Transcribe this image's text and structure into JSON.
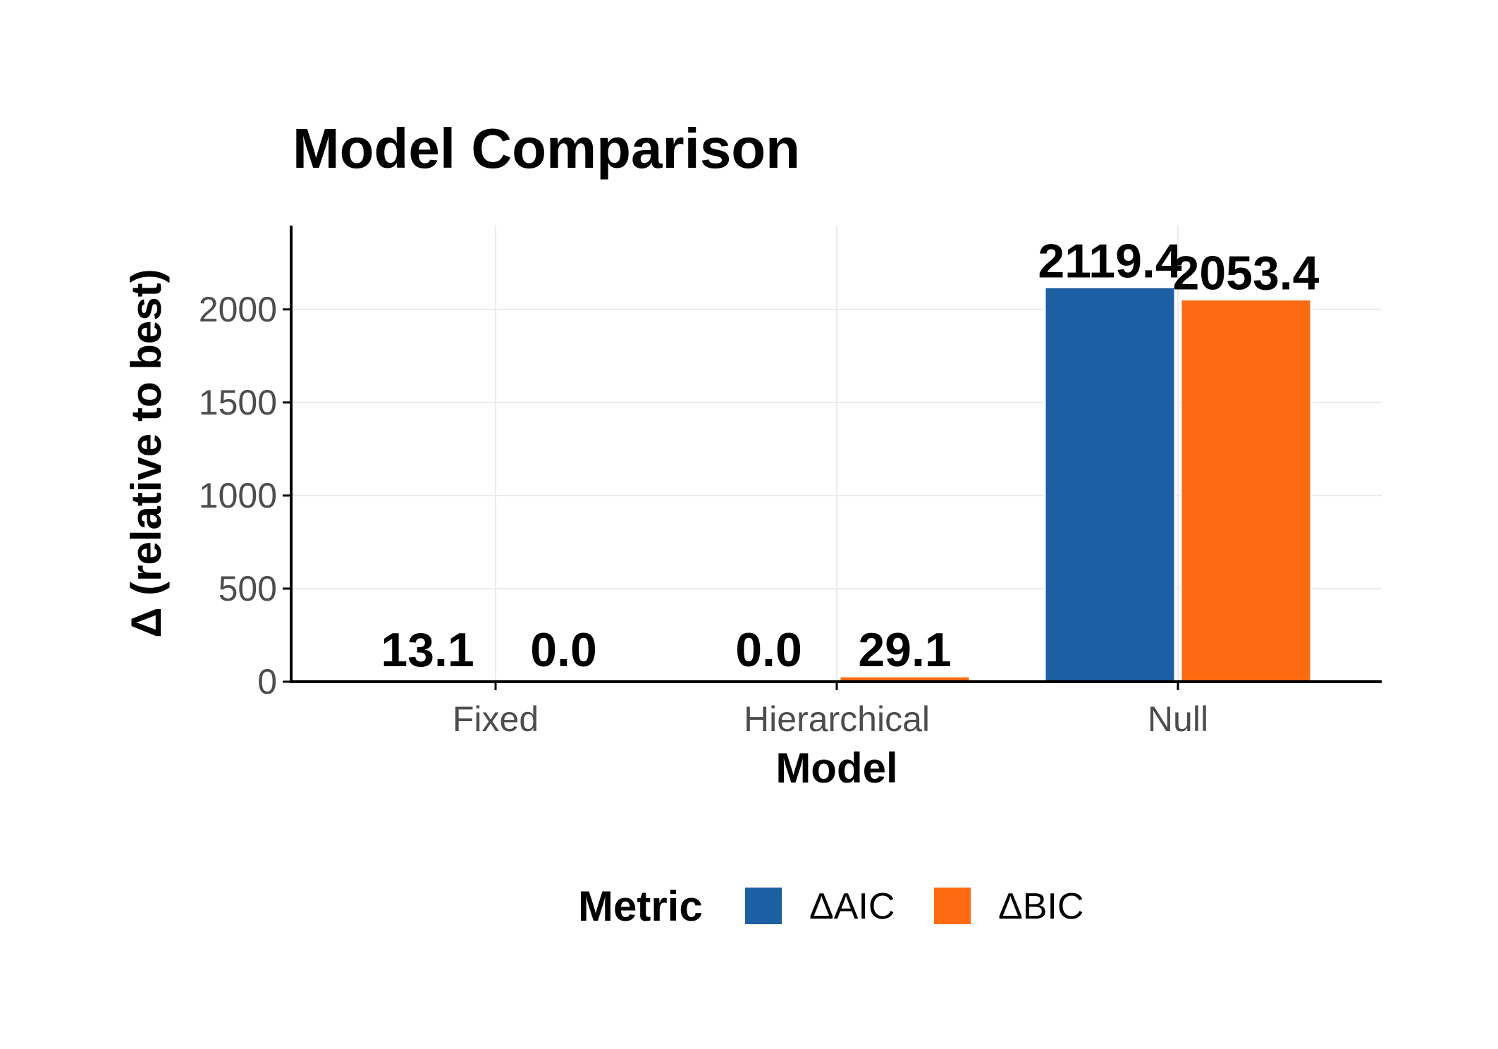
{
  "chart_data": {
    "type": "bar",
    "title": "Model Comparison",
    "xlabel": "Model",
    "ylabel": "Δ (relative to best)",
    "categories": [
      "Fixed",
      "Hierarchical",
      "Null"
    ],
    "series": [
      {
        "name": "ΔAIC",
        "color": "#1c5fa3",
        "values": [
          13.1,
          0.0,
          2119.4
        ],
        "labels": [
          "13.1",
          "0.0",
          "2119.4"
        ]
      },
      {
        "name": "ΔBIC",
        "color": "#fd6a12",
        "values": [
          0.0,
          29.1,
          2053.4
        ],
        "labels": [
          "0.0",
          "29.1",
          "2053.4"
        ]
      }
    ],
    "ylim": [
      0,
      2450
    ],
    "yticks": [
      0,
      500,
      1000,
      1500,
      2000
    ],
    "grid": true,
    "legend": {
      "title": "Metric",
      "position": "bottom"
    }
  }
}
